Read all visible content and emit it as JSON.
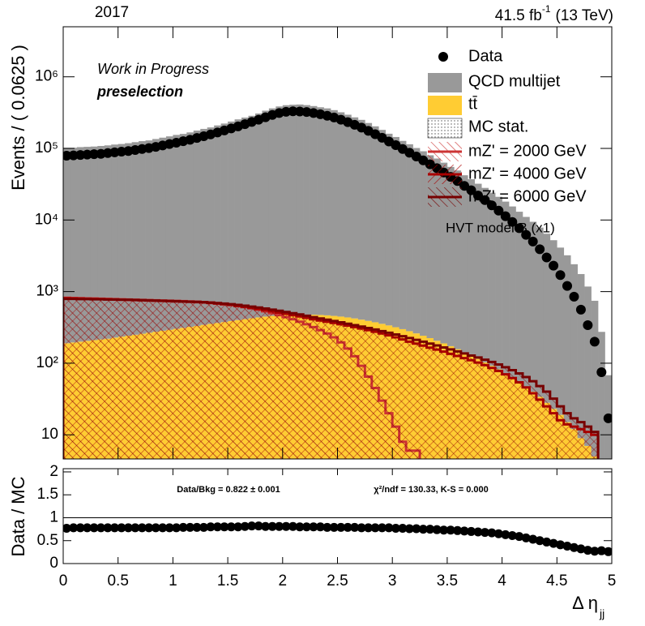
{
  "chart_data": {
    "type": "histogram",
    "year": "2017",
    "lumi": "41.5 fb",
    "lumi_exp": "-1",
    "energy": "(13 TeV)",
    "annotations": [
      "Work in Progress",
      "preselection"
    ],
    "signal_note": "HVT model B (x1)",
    "ylabel": "Events / ( 0.0625 )",
    "xlabel": "Δ η",
    "xlabel_sub": "jj",
    "xlim": [
      0,
      5
    ],
    "xticks": [
      0,
      0.5,
      1,
      1.5,
      2,
      2.5,
      3,
      3.5,
      4,
      4.5,
      5
    ],
    "ylim": [
      4.6,
      5000000
    ],
    "log_y": true,
    "yticks": [
      10,
      {
        "value": 100,
        "label": "10²"
      },
      {
        "value": 1000,
        "label": "10³"
      },
      {
        "value": 10000,
        "label": "10⁴"
      },
      {
        "value": 100000,
        "label": "10⁵"
      },
      {
        "value": 1000000,
        "label": "10⁶"
      }
    ],
    "data": {
      "name": "Data",
      "color": "#000000",
      "values": [
        79000,
        80000,
        81000,
        82000,
        83000,
        84000,
        86000,
        88000,
        90000,
        92000,
        95000,
        98000,
        101000,
        105000,
        110000,
        115000,
        120000,
        126000,
        132000,
        140000,
        148000,
        157000,
        167000,
        178000,
        190000,
        203000,
        218000,
        234000,
        252000,
        272000,
        293000,
        312000,
        325000,
        330000,
        328000,
        322000,
        312000,
        300000,
        286000,
        270000,
        252000,
        233000,
        214000,
        195000,
        176000,
        158000,
        141000,
        125000,
        111000,
        98000,
        87000,
        77000,
        68000,
        60000,
        53000,
        46000,
        40000,
        35000,
        30000,
        26000,
        22000,
        19000,
        16000,
        13500,
        11300,
        9400,
        7700,
        6200,
        5000,
        3900,
        3000,
        2300,
        1700,
        1200,
        850,
        560,
        340,
        200,
        75,
        17
      ]
    },
    "stack": [
      {
        "name": "tt̄",
        "color": "#ffcc33",
        "values": [
          190,
          195,
          200,
          205,
          210,
          215,
          220,
          228,
          235,
          242,
          250,
          258,
          266,
          275,
          284,
          293,
          302,
          312,
          322,
          332,
          343,
          354,
          365,
          376,
          388,
          400,
          412,
          424,
          436,
          448,
          458,
          466,
          472,
          476,
          478,
          478,
          476,
          472,
          466,
          458,
          448,
          436,
          422,
          406,
          390,
          373,
          355,
          337,
          318,
          299,
          280,
          261,
          242,
          224,
          206,
          189,
          173,
          157,
          142,
          128,
          115,
          103,
          92,
          82,
          72,
          63,
          55,
          47,
          40,
          34,
          28,
          23,
          19,
          15,
          12,
          9,
          7,
          5,
          4,
          3
        ]
      },
      {
        "name": "QCD multijet",
        "color": "#999999",
        "values": [
          102000,
          102000,
          104000,
          105000,
          106000,
          108000,
          110000,
          113000,
          115000,
          118000,
          122000,
          126000,
          129000,
          135000,
          141000,
          147000,
          154000,
          159000,
          167000,
          177000,
          187000,
          196000,
          209000,
          222000,
          237000,
          254000,
          269000,
          285000,
          307000,
          336000,
          362000,
          385000,
          401000,
          407000,
          410000,
          402000,
          390000,
          375000,
          362000,
          342000,
          319000,
          295000,
          271000,
          250000,
          226000,
          203000,
          181000,
          160000,
          144000,
          127000,
          114000,
          101000,
          91000,
          80000,
          72000,
          63000,
          55000,
          49000,
          42000,
          37000,
          32000,
          28000,
          24000,
          21000,
          18000,
          15400,
          13000,
          11000,
          9400,
          7800,
          6400,
          5200,
          4100,
          3200,
          2400,
          1750,
          1170,
          740,
          270,
          65
        ]
      }
    ],
    "mc_stat_label": "MC stat.",
    "signals": [
      {
        "name": "mZ' = 2000 GeV",
        "color": "#cc3333",
        "values": [
          820,
          815,
          810,
          805,
          800,
          795,
          790,
          785,
          780,
          775,
          770,
          765,
          760,
          755,
          750,
          745,
          740,
          735,
          730,
          725,
          715,
          705,
          690,
          675,
          655,
          635,
          610,
          585,
          560,
          530,
          500,
          470,
          440,
          410,
          380,
          350,
          320,
          290,
          260,
          230,
          195,
          160,
          125,
          92,
          65,
          45,
          30,
          20,
          13,
          8,
          6,
          6,
          0,
          0,
          0,
          0,
          0,
          0,
          0,
          0,
          0,
          0,
          0,
          0,
          0,
          0,
          0,
          0,
          0,
          0,
          0,
          0,
          0,
          0,
          0,
          0,
          0,
          0,
          0,
          0
        ]
      },
      {
        "name": "mZ' = 4000 GeV",
        "color": "#aa0000",
        "values": [
          810,
          805,
          800,
          795,
          790,
          785,
          780,
          775,
          770,
          765,
          760,
          755,
          750,
          745,
          740,
          735,
          730,
          725,
          720,
          712,
          705,
          695,
          680,
          665,
          650,
          630,
          610,
          590,
          570,
          550,
          530,
          510,
          490,
          470,
          450,
          430,
          410,
          395,
          380,
          365,
          350,
          335,
          320,
          305,
          290,
          275,
          260,
          245,
          230,
          215,
          200,
          188,
          176,
          165,
          155,
          145,
          135,
          126,
          118,
          110,
          102,
          94,
          86,
          78,
          70,
          62,
          54,
          46,
          38,
          31,
          25,
          20,
          16,
          14,
          13,
          12,
          11,
          10,
          0,
          0
        ]
      },
      {
        "name": "mZ' = 6000 GeV",
        "color": "#770000",
        "values": [
          790,
          790,
          785,
          785,
          780,
          780,
          775,
          775,
          770,
          770,
          765,
          760,
          755,
          750,
          745,
          740,
          735,
          730,
          725,
          720,
          712,
          703,
          692,
          680,
          667,
          652,
          636,
          618,
          600,
          580,
          560,
          540,
          520,
          500,
          480,
          460,
          440,
          422,
          405,
          388,
          372,
          356,
          340,
          325,
          310,
          295,
          280,
          266,
          252,
          238,
          225,
          212,
          200,
          188,
          177,
          166,
          156,
          146,
          137,
          128,
          120,
          112,
          104,
          96,
          88,
          80,
          72,
          64,
          56,
          48,
          40,
          32,
          25,
          20,
          17,
          15,
          13,
          11,
          0,
          0
        ]
      }
    ],
    "ratio": {
      "ylabel": "Data / MC",
      "ylim": [
        0,
        2.07
      ],
      "yticks": [
        0,
        0.5,
        1,
        1.5,
        2
      ],
      "stats": "Data/Bkg = 0.822 ± 0.001",
      "tests": "χ²/ndf = 130.33,   K-S = 0.000",
      "values": [
        0.77,
        0.78,
        0.78,
        0.78,
        0.78,
        0.78,
        0.78,
        0.78,
        0.78,
        0.78,
        0.78,
        0.78,
        0.78,
        0.78,
        0.78,
        0.78,
        0.78,
        0.79,
        0.79,
        0.79,
        0.79,
        0.8,
        0.8,
        0.8,
        0.8,
        0.8,
        0.81,
        0.82,
        0.82,
        0.81,
        0.81,
        0.81,
        0.81,
        0.81,
        0.8,
        0.8,
        0.8,
        0.8,
        0.79,
        0.79,
        0.79,
        0.79,
        0.79,
        0.78,
        0.78,
        0.78,
        0.78,
        0.78,
        0.77,
        0.77,
        0.76,
        0.76,
        0.75,
        0.75,
        0.74,
        0.73,
        0.73,
        0.72,
        0.71,
        0.7,
        0.69,
        0.68,
        0.67,
        0.65,
        0.63,
        0.61,
        0.59,
        0.56,
        0.53,
        0.5,
        0.47,
        0.44,
        0.41,
        0.38,
        0.35,
        0.32,
        0.29,
        0.27,
        0.28,
        0.26
      ]
    }
  }
}
